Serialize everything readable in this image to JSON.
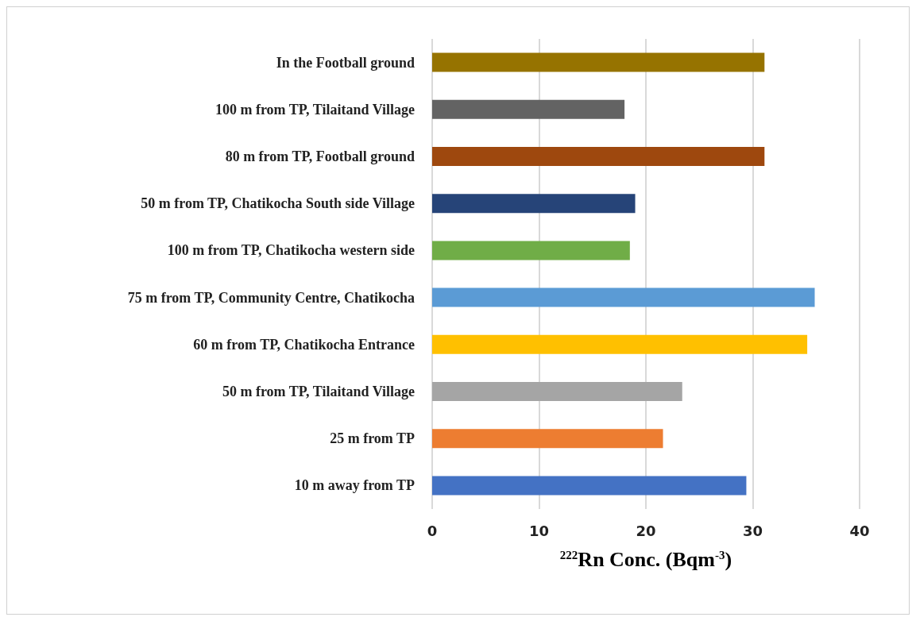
{
  "chart_data": {
    "type": "bar",
    "orientation": "horizontal",
    "xlabel": "$^{222}$Rn Conc. (Bqm$^{-3}$)",
    "categories": [
      "In the Football ground",
      "100 m from TP, Tilaitand Village",
      "80 m from TP, Football ground",
      "50 m from TP, Chatikocha South side Village",
      "100 m from TP, Chatikocha western side",
      "75 m from TP, Community Centre, Chatikocha",
      "60 m from TP, Chatikocha Entrance",
      "50 m from TP, Tilaitand Village",
      "25 m from TP",
      "10 m away from TP"
    ],
    "values": [
      31.1,
      18.0,
      31.1,
      19.0,
      18.5,
      35.8,
      35.1,
      23.4,
      21.6,
      29.4
    ],
    "colors": [
      "#967300",
      "#636363",
      "#9e480e",
      "#264478",
      "#70ad47",
      "#5b9bd5",
      "#ffc000",
      "#a5a5a5",
      "#ed7d31",
      "#4472c4"
    ],
    "xlim": [
      0,
      40
    ],
    "xticks": [
      0,
      10,
      20,
      30,
      40
    ],
    "grid": "x"
  }
}
